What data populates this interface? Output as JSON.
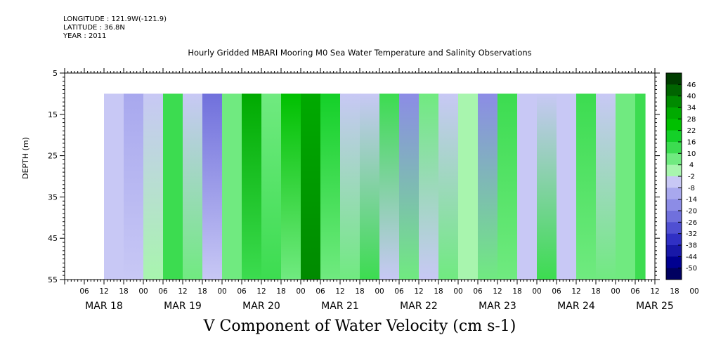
{
  "meta": {
    "longitude": "LONGITUDE : 121.9W(-121.9)",
    "latitude": "LATITUDE : 36.8N",
    "year": "YEAR : 2011"
  },
  "chart_data": {
    "type": "heatmap",
    "title": "Hourly Gridded MBARI Mooring M0 Sea Water Temperature and Salinity Observations",
    "subtitle": "V Component of Water Velocity (cm s-1)",
    "ylabel": "DEPTH (m)",
    "xlabel": "",
    "y_axis": {
      "range": [
        5,
        55
      ],
      "inverted": true,
      "ticks": [
        5,
        15,
        25,
        35,
        45,
        55
      ],
      "data_range": [
        10,
        55
      ]
    },
    "x_axis": {
      "hour_labels": [
        "06",
        "12",
        "18",
        "00",
        "06",
        "12",
        "18",
        "00",
        "06",
        "12",
        "18",
        "00",
        "06",
        "12",
        "18",
        "00",
        "06",
        "12",
        "18",
        "00",
        "06",
        "12",
        "18",
        "00",
        "06",
        "12",
        "18",
        "00",
        "06",
        "12",
        "18",
        "00"
      ],
      "hour_tick_first": "2011-03-18T06:00",
      "hour_tick_step_hours": 6,
      "day_labels": [
        "MAR 18",
        "MAR 19",
        "MAR 20",
        "MAR 21",
        "MAR 22",
        "MAR 23",
        "MAR 24",
        "MAR 25"
      ],
      "data_start": "2011-03-18T12:00",
      "data_end": "2011-03-25T09:00"
    },
    "colorbar": {
      "labels": [
        "46",
        "40",
        "34",
        "28",
        "22",
        "16",
        "10",
        "4",
        "-2",
        "-8",
        "-14",
        "-20",
        "-26",
        "-32",
        "-38",
        "-44",
        "-50"
      ],
      "colors": [
        "#003d00",
        "#006400",
        "#008a00",
        "#00aa00",
        "#00c000",
        "#14d028",
        "#3cdc50",
        "#70ea80",
        "#a8f5ae",
        "#c8c8f5",
        "#a8a8ee",
        "#8c8ce6",
        "#7070dc",
        "#5050d2",
        "#3030c4",
        "#1818a8",
        "#000090",
        "#000060"
      ]
    },
    "velocity_columns": [
      {
        "time": "2011-03-18T12:00",
        "surface": -8,
        "bottom": -6
      },
      {
        "time": "2011-03-18T18:00",
        "surface": -12,
        "bottom": -4
      },
      {
        "time": "2011-03-19T00:00",
        "surface": -8,
        "bottom": 2
      },
      {
        "time": "2011-03-19T06:00",
        "surface": 10,
        "bottom": 12
      },
      {
        "time": "2011-03-19T12:00",
        "surface": -6,
        "bottom": 8
      },
      {
        "time": "2011-03-19T18:00",
        "surface": -22,
        "bottom": -4
      },
      {
        "time": "2011-03-20T00:00",
        "surface": 8,
        "bottom": 4
      },
      {
        "time": "2011-03-20T06:00",
        "surface": 30,
        "bottom": 12
      },
      {
        "time": "2011-03-20T12:00",
        "surface": 8,
        "bottom": 10
      },
      {
        "time": "2011-03-20T18:00",
        "surface": 24,
        "bottom": 8
      },
      {
        "time": "2011-03-21T00:00",
        "surface": 28,
        "bottom": 38
      },
      {
        "time": "2011-03-21T06:00",
        "surface": 16,
        "bottom": 8
      },
      {
        "time": "2011-03-21T12:00",
        "surface": -6,
        "bottom": 4
      },
      {
        "time": "2011-03-21T18:00",
        "surface": -6,
        "bottom": 10
      },
      {
        "time": "2011-03-22T00:00",
        "surface": 10,
        "bottom": -6
      },
      {
        "time": "2011-03-22T06:00",
        "surface": -20,
        "bottom": 4
      },
      {
        "time": "2011-03-22T12:00",
        "surface": 6,
        "bottom": -4
      },
      {
        "time": "2011-03-22T18:00",
        "surface": -6,
        "bottom": 8
      },
      {
        "time": "2011-03-23T00:00",
        "surface": 2,
        "bottom": -2
      },
      {
        "time": "2011-03-23T06:00",
        "surface": -16,
        "bottom": 8
      },
      {
        "time": "2011-03-23T12:00",
        "surface": 10,
        "bottom": 6
      },
      {
        "time": "2011-03-23T18:00",
        "surface": -8,
        "bottom": -6
      },
      {
        "time": "2011-03-24T00:00",
        "surface": -6,
        "bottom": 14
      },
      {
        "time": "2011-03-24T06:00",
        "surface": -6,
        "bottom": -4
      },
      {
        "time": "2011-03-24T12:00",
        "surface": 10,
        "bottom": 6
      },
      {
        "time": "2011-03-24T18:00",
        "surface": -4,
        "bottom": 4
      },
      {
        "time": "2011-03-25T00:00",
        "surface": 6,
        "bottom": 8
      },
      {
        "time": "2011-03-25T06:00",
        "surface": 12,
        "bottom": 10
      }
    ]
  }
}
